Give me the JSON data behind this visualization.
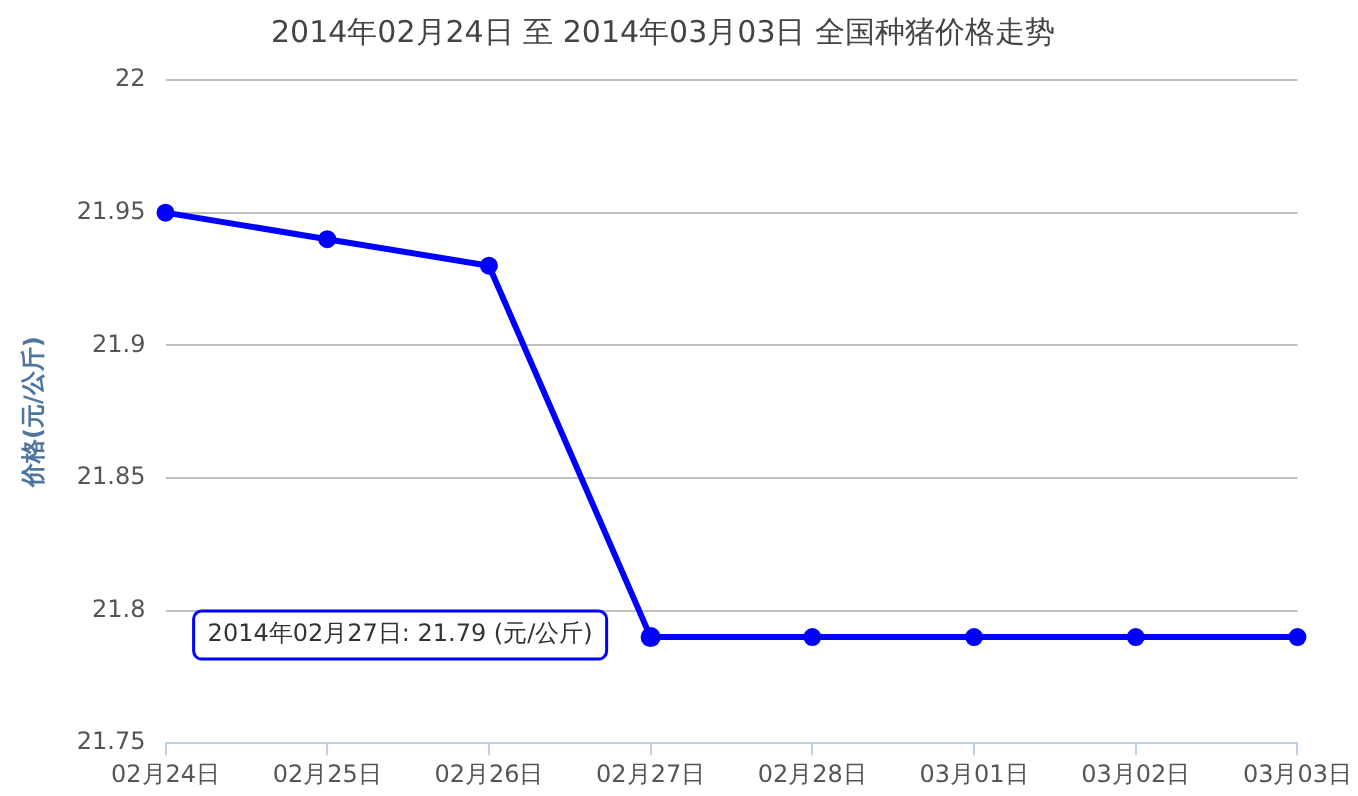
{
  "chart_data": {
    "type": "line",
    "title": "2014年02月24日 至 2014年03月03日 全国种猪价格走势",
    "ylabel": "价格(元/公斤)",
    "categories": [
      "02月24日",
      "02月25日",
      "02月26日",
      "02月27日",
      "02月28日",
      "03月01日",
      "03月02日",
      "03月03日"
    ],
    "series": [
      {
        "color": "#0000ff",
        "values": [
          21.95,
          21.94,
          21.93,
          21.79,
          21.79,
          21.79,
          21.79,
          21.79
        ]
      }
    ],
    "ylim": [
      21.75,
      22
    ],
    "yticks": [
      21.75,
      21.8,
      21.85,
      21.9,
      21.95,
      22
    ],
    "grid": "y",
    "legend": false,
    "marker": "circle",
    "line_style": "solid",
    "annotations": [
      {
        "text": "2014年02月27日: 21.79 (元/公斤)",
        "x": "02月27日",
        "y": 21.79
      }
    ]
  }
}
